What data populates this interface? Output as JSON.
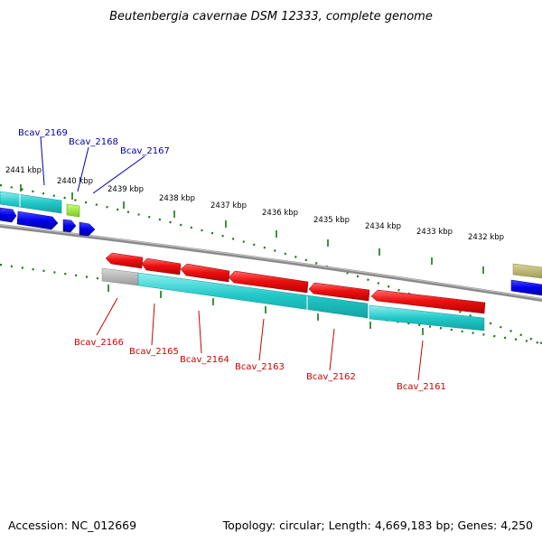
{
  "title": "Beutenbergia cavernae DSM 12333, complete genome",
  "footer": {
    "accession": "Accession: NC_012669",
    "topology": "Topology: circular; Length: 4,669,183 bp; Genes: 4,250"
  },
  "ticks": [
    "2441 kbp",
    "2440 kbp",
    "2439 kbp",
    "2438 kbp",
    "2437 kbp",
    "2436 kbp",
    "2435 kbp",
    "2434 kbp",
    "2433 kbp",
    "2432 kbp"
  ],
  "genes_top": [
    "Bcav_2169",
    "Bcav_2168",
    "Bcav_2167"
  ],
  "genes_bottom": [
    "Bcav_2166",
    "Bcav_2165",
    "Bcav_2164",
    "Bcav_2163",
    "Bcav_2162",
    "Bcav_2161"
  ],
  "colors": {
    "forward_label": "#0000aa",
    "reverse_label": "#cc0000",
    "cds_red": "#ee1111",
    "cds_blue": "#0000ee",
    "rna_green": "#99ee33",
    "cyan": "#22c8c8",
    "backbone": "#888888",
    "tick_green": "#117711"
  }
}
